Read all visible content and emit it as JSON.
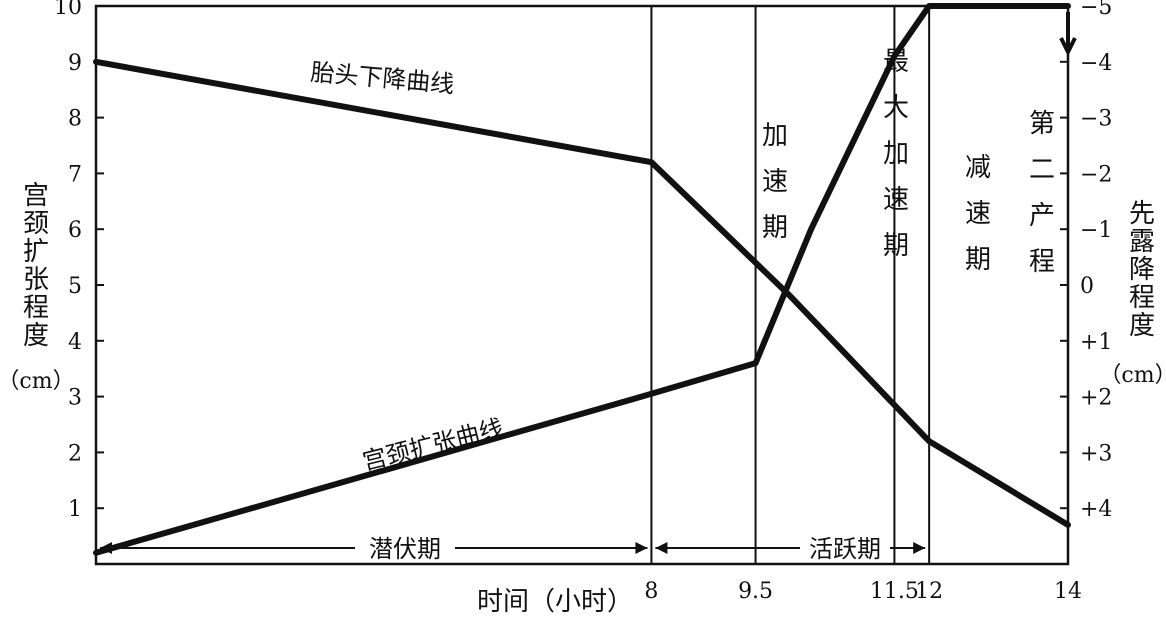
{
  "chart_data": {
    "type": "line",
    "xlabel": "时间（小时）",
    "x_ticks": [
      8,
      9.5,
      11.5,
      12,
      14
    ],
    "x_tick_labels": [
      "8",
      "9.5",
      "11.5",
      "12",
      "14"
    ],
    "xlim": [
      0,
      14
    ],
    "left_axis": {
      "label": [
        "宫",
        "颈",
        "扩",
        "张",
        "程",
        "度"
      ],
      "unit": "（cm）",
      "ylim": [
        0,
        10
      ],
      "ticks": [
        1,
        2,
        3,
        4,
        5,
        6,
        7,
        8,
        9,
        10
      ],
      "tick_labels": [
        "1",
        "2",
        "3",
        "4",
        "5",
        "6",
        "7",
        "8",
        "9",
        "10"
      ]
    },
    "right_axis": {
      "label": [
        "先",
        "露",
        "降",
        "程",
        "度"
      ],
      "unit": "（cm）",
      "ylim": [
        5,
        -5
      ],
      "ticks": [
        -5,
        -4,
        -3,
        -2,
        -1,
        0,
        1,
        2,
        3,
        4
      ],
      "tick_labels": [
        "−5",
        "−4",
        "−3",
        "−2",
        "−1",
        "0",
        "+1",
        "+2",
        "+3",
        "+4"
      ]
    },
    "series": [
      {
        "name": "宫颈扩张曲线",
        "axis": "left",
        "x": [
          0,
          8,
          9.5,
          10.3,
          11.5,
          12,
          14
        ],
        "y": [
          0.2,
          3.05,
          3.6,
          6.0,
          9.1,
          10.0,
          10.0
        ]
      },
      {
        "name": "胎头下降曲线",
        "axis": "right",
        "x": [
          0,
          8,
          9,
          10,
          11,
          12,
          14
        ],
        "y": [
          -4,
          -2.2,
          -1,
          0.2,
          1.5,
          2.8,
          4.3
        ]
      }
    ],
    "phase_lines": [
      8,
      9.5,
      11.5,
      12
    ],
    "phases": [
      {
        "label": [
          "加",
          "速",
          "期"
        ]
      },
      {
        "label": [
          "最",
          "大",
          "加",
          "速",
          "期"
        ]
      },
      {
        "label": [
          "减",
          "速",
          "期"
        ]
      },
      {
        "label": [
          "第",
          "二",
          "产",
          "程"
        ]
      }
    ],
    "bottom_spans": [
      {
        "label": "潜伏期",
        "from": 0,
        "to": 8
      },
      {
        "label": "活跃期",
        "from": 8,
        "to": 12
      }
    ]
  }
}
